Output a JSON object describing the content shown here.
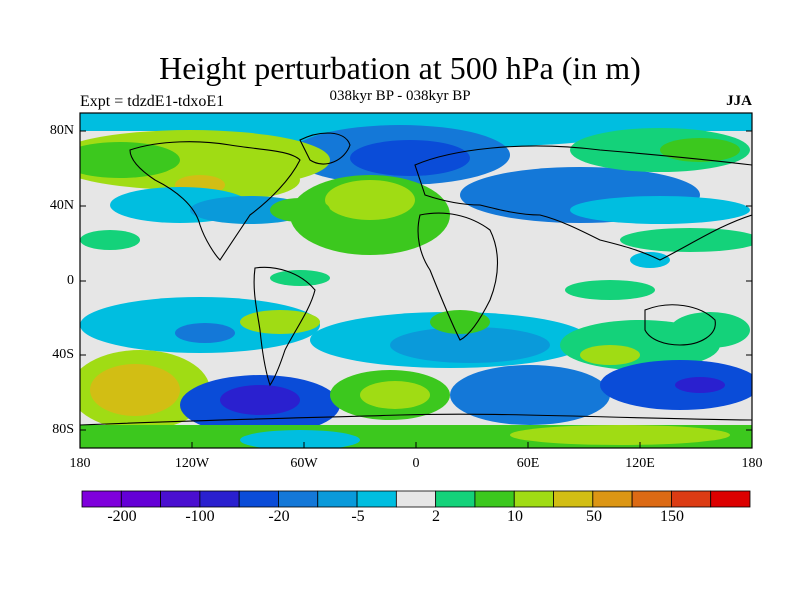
{
  "header": {
    "title": "Height perturbation at 500 hPa (in m)",
    "subtitle": "038kyr BP - 038kyr BP",
    "left_label": "Expt = tdzdE1-tdxoE1",
    "right_label": "JJA"
  },
  "axes": {
    "lat_ticks": [
      "80N",
      "40N",
      "0",
      "40S",
      "80S"
    ],
    "lon_ticks": [
      "180",
      "120W",
      "60W",
      "0",
      "60E",
      "120E",
      "180"
    ]
  },
  "colorbar": {
    "colors": [
      "#7F00DC",
      "#6400D6",
      "#4A0FD0",
      "#2A20CF",
      "#0A4CD8",
      "#1478D8",
      "#0A9ADA",
      "#00BEE0",
      "#E6E6E6",
      "#14D27A",
      "#3CC81E",
      "#A0DC14",
      "#D2BE14",
      "#DC9614",
      "#DC6A14",
      "#DC3C14",
      "#DC0000"
    ],
    "labels": [
      "-200",
      "-100",
      "-20",
      "-5",
      "2",
      "10",
      "50",
      "150"
    ]
  }
}
